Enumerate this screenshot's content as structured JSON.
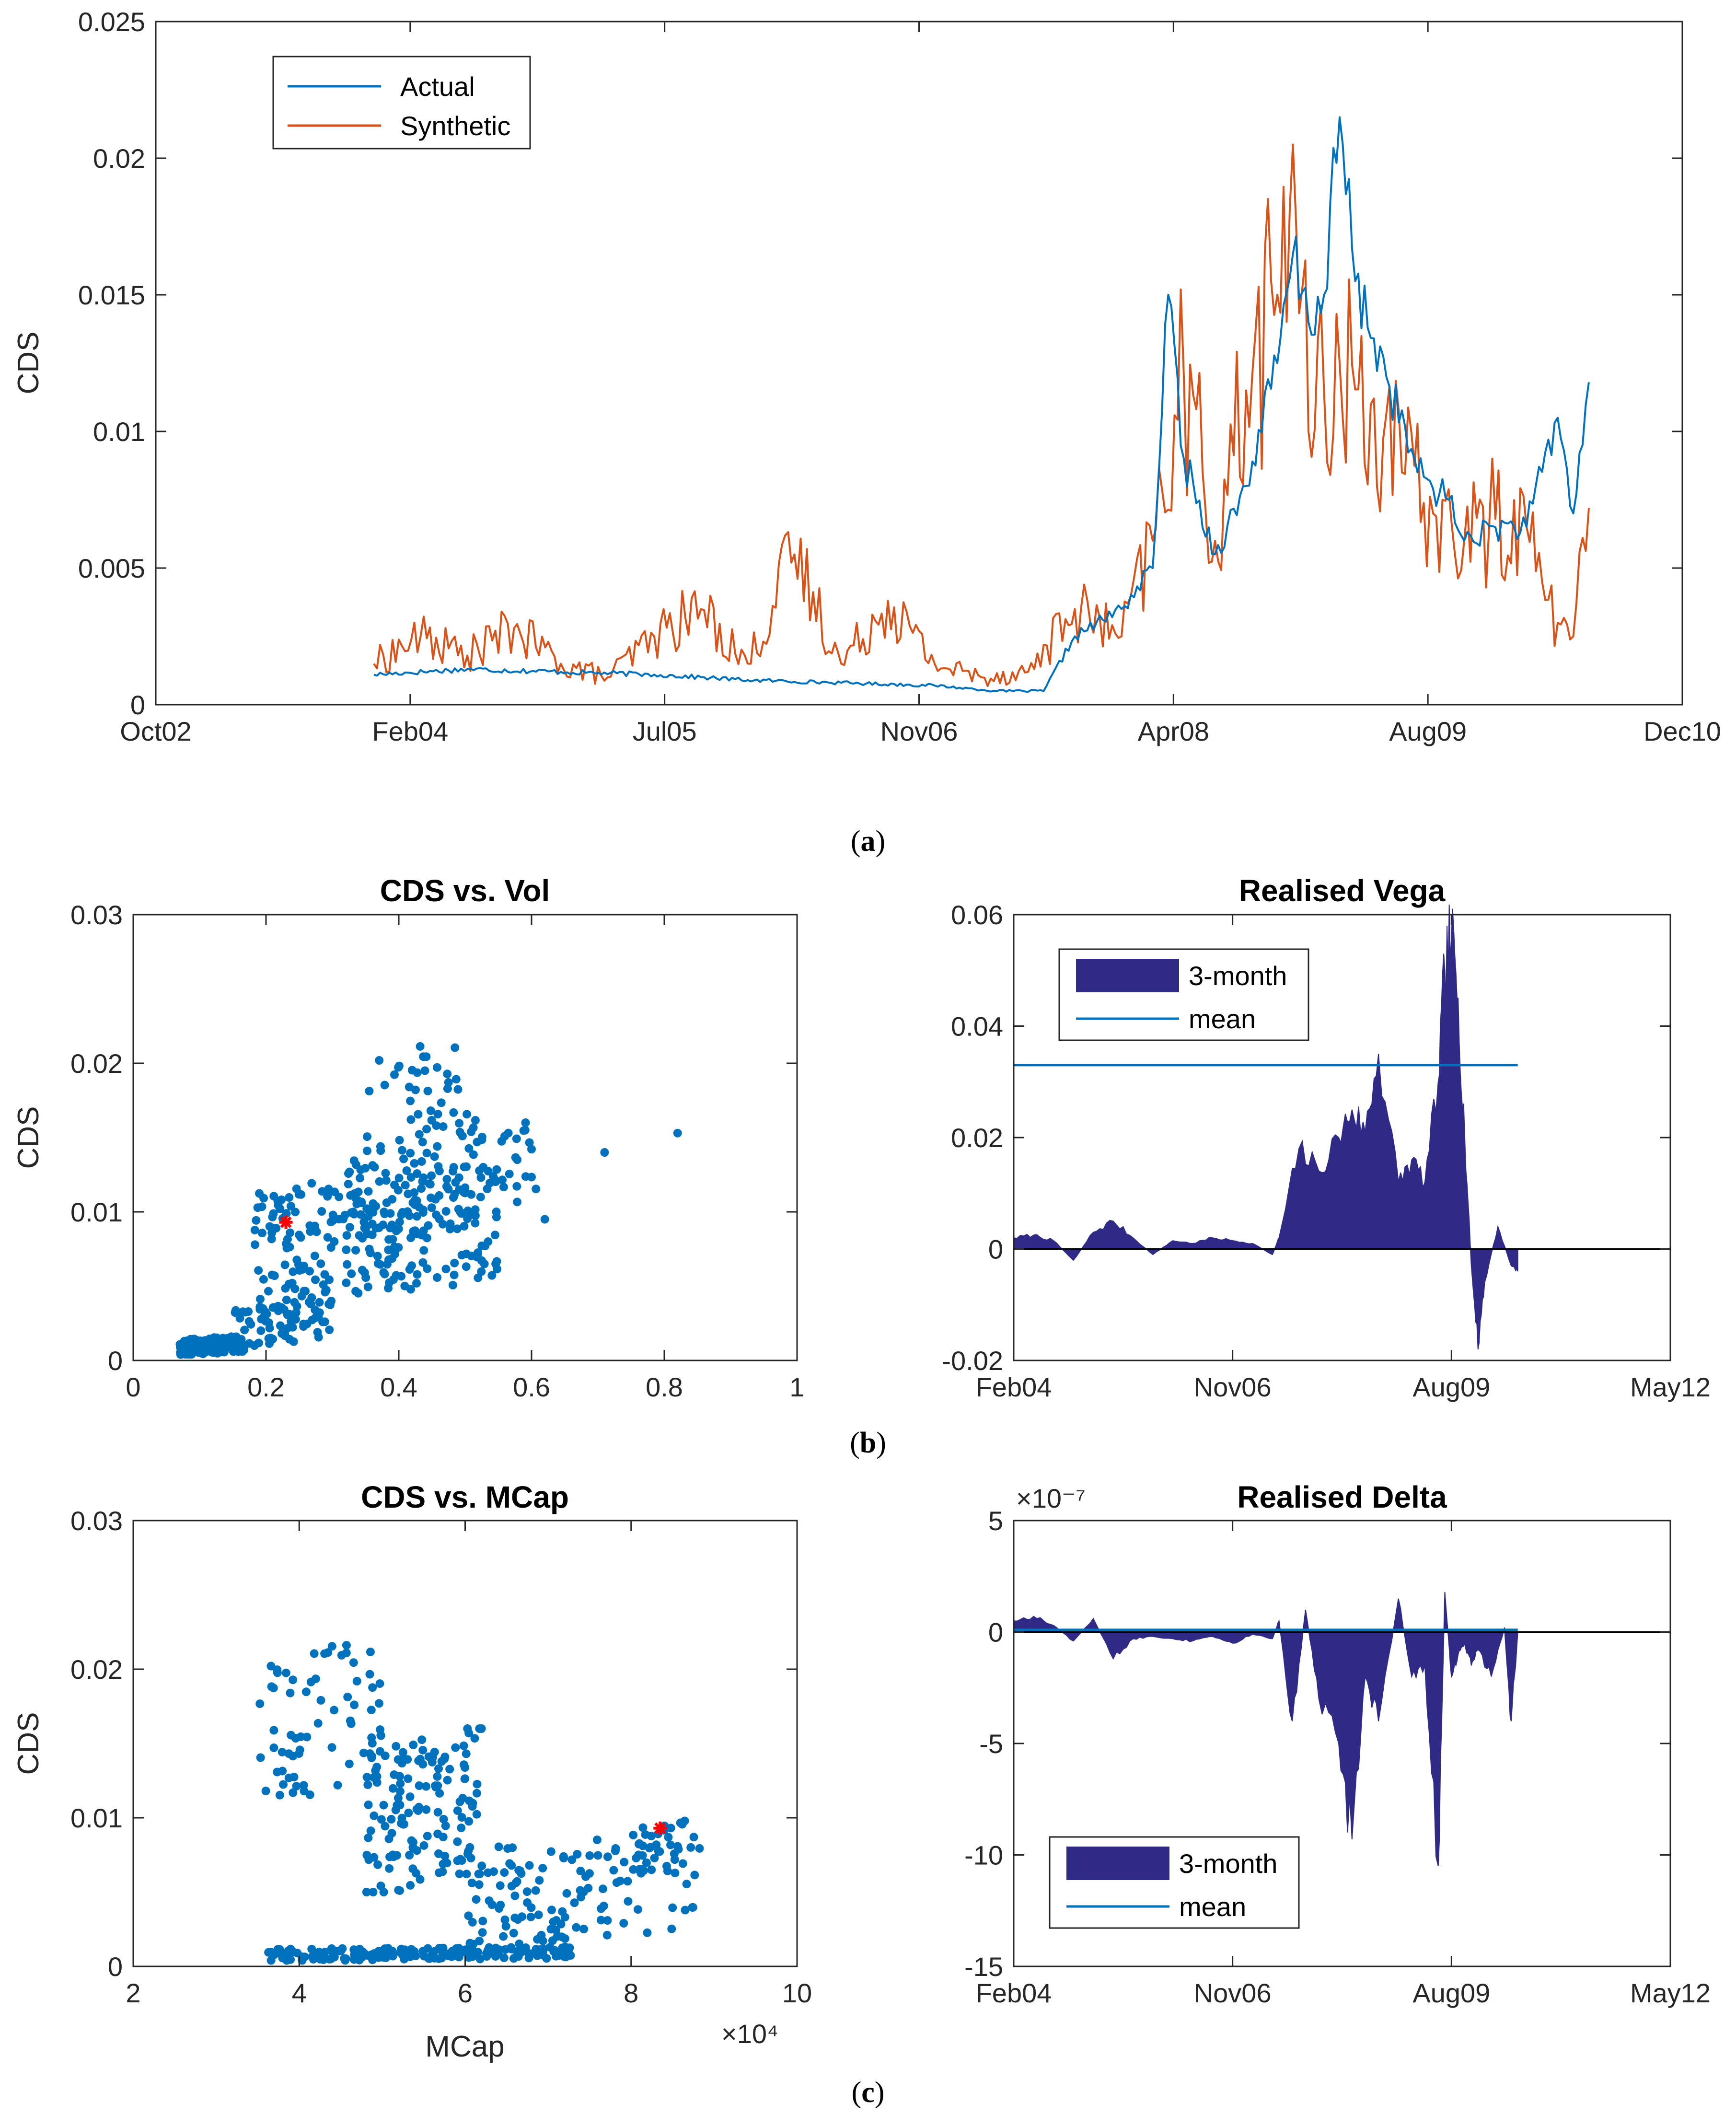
{
  "colors": {
    "actual": "#0072BD",
    "synthetic": "#D95319",
    "area": "#2E2A86",
    "mean": "#0072BD",
    "scatter": "#0072BD",
    "marker": "#FF0000",
    "axis": "#262626"
  },
  "captions": {
    "a": "a",
    "b": "b",
    "c": "c"
  },
  "chart_data": [
    {
      "id": "a",
      "type": "line",
      "ylabel": "CDS",
      "xtick_labels": [
        "Oct02",
        "Feb04",
        "Jul05",
        "Nov06",
        "Apr08",
        "Aug09",
        "Dec10"
      ],
      "xlim": [
        "2002-10",
        "2010-12"
      ],
      "ylim": [
        0,
        0.025
      ],
      "ytick_labels": [
        "0",
        "0.005",
        "0.01",
        "0.015",
        "0.02",
        "0.025"
      ],
      "legend": "top-left",
      "series": [
        {
          "name": "Actual",
          "x": [
            "2003-12",
            "2004-06",
            "2004-12",
            "2005-06",
            "2005-12",
            "2006-06",
            "2006-12",
            "2007-04",
            "2007-07",
            "2007-09",
            "2007-12",
            "2008-02",
            "2008-03",
            "2008-04",
            "2008-06",
            "2008-08",
            "2008-10",
            "2008-11",
            "2008-12",
            "2009-01",
            "2009-02",
            "2009-03",
            "2009-05",
            "2009-07",
            "2009-09",
            "2009-10",
            "2009-12",
            "2010-02",
            "2010-04",
            "2010-05",
            "2010-06"
          ],
          "y": [
            0.0011,
            0.0013,
            0.0012,
            0.0011,
            0.0009,
            0.0008,
            0.0007,
            0.0005,
            0.0005,
            0.0025,
            0.0035,
            0.005,
            0.015,
            0.009,
            0.0055,
            0.008,
            0.0125,
            0.0165,
            0.014,
            0.015,
            0.0215,
            0.0155,
            0.012,
            0.0085,
            0.0075,
            0.006,
            0.0065,
            0.0065,
            0.0105,
            0.007,
            0.0118
          ]
        },
        {
          "name": "Synthetic",
          "x": [
            "2003-12",
            "2004-03",
            "2004-06",
            "2004-09",
            "2004-12",
            "2005-03",
            "2005-06",
            "2005-09",
            "2005-12",
            "2006-03",
            "2006-06",
            "2006-09",
            "2006-12",
            "2007-03",
            "2007-06",
            "2007-09",
            "2007-12",
            "2008-02",
            "2008-04",
            "2008-06",
            "2008-08",
            "2008-10",
            "2008-11",
            "2008-12",
            "2009-02",
            "2009-04",
            "2009-06",
            "2009-08",
            "2009-10",
            "2009-12",
            "2010-02",
            "2010-03",
            "2010-04",
            "2010-05",
            "2010-06"
          ],
          "y": [
            0.0015,
            0.0025,
            0.0018,
            0.0028,
            0.0015,
            0.001,
            0.0025,
            0.0035,
            0.0015,
            0.0055,
            0.0015,
            0.0038,
            0.0015,
            0.001,
            0.0012,
            0.0035,
            0.0025,
            0.006,
            0.012,
            0.006,
            0.0115,
            0.015,
            0.0205,
            0.01,
            0.0125,
            0.011,
            0.0085,
            0.007,
            0.006,
            0.0068,
            0.0065,
            0.0045,
            0.003,
            0.0025,
            0.0072
          ]
        }
      ]
    },
    {
      "id": "b-left",
      "type": "scatter",
      "title": "CDS vs. Vol",
      "ylabel": "CDS",
      "xlim": [
        0,
        1
      ],
      "ylim": [
        0,
        0.03
      ],
      "xtick_labels": [
        "0",
        "0.2",
        "0.4",
        "0.6",
        "0.8",
        "1"
      ],
      "ytick_labels": [
        "0",
        "0.01",
        "0.02",
        "0.03"
      ],
      "clusters": [
        {
          "x": [
            0.07,
            0.17
          ],
          "y": [
            0.0004,
            0.0016
          ],
          "n": 150
        },
        {
          "x": [
            0.15,
            0.3
          ],
          "y": [
            0.001,
            0.004
          ],
          "n": 70
        },
        {
          "x": [
            0.18,
            0.55
          ],
          "y": [
            0.004,
            0.013
          ],
          "n": 230
        },
        {
          "x": [
            0.3,
            0.62
          ],
          "y": [
            0.008,
            0.016
          ],
          "n": 110
        },
        {
          "x": [
            0.35,
            0.52
          ],
          "y": [
            0.014,
            0.022
          ],
          "n": 40
        }
      ],
      "points": [
        {
          "x": 0.71,
          "y": 0.014
        },
        {
          "x": 0.82,
          "y": 0.0153
        },
        {
          "x": 0.62,
          "y": 0.0095
        }
      ],
      "highlight": {
        "x": 0.23,
        "y": 0.0093
      }
    },
    {
      "id": "b-right",
      "type": "area",
      "title": "Realised Vega",
      "xtick_labels": [
        "Feb04",
        "Nov06",
        "Aug09",
        "May12"
      ],
      "xlim": [
        "2004-02",
        "2012-05"
      ],
      "ylim": [
        -0.02,
        0.06
      ],
      "ytick_labels": [
        "-0.02",
        "0",
        "0.02",
        "0.04",
        "0.06"
      ],
      "legend": "top-left",
      "series": [
        {
          "name": "3-month",
          "x": [
            "2004-02",
            "2004-05",
            "2004-08",
            "2004-11",
            "2005-02",
            "2005-05",
            "2005-08",
            "2005-11",
            "2006-02",
            "2006-05",
            "2006-08",
            "2006-11",
            "2007-02",
            "2007-05",
            "2007-06",
            "2007-09",
            "2007-12",
            "2008-03",
            "2008-05",
            "2008-07",
            "2008-09",
            "2008-12",
            "2009-02",
            "2009-04",
            "2009-06",
            "2009-07",
            "2009-08",
            "2009-09",
            "2009-10",
            "2009-11",
            "2009-12",
            "2010-01",
            "2010-03",
            "2010-05",
            "2010-06"
          ],
          "y": [
            0.002,
            0.0025,
            0.0015,
            -0.002,
            0.003,
            0.005,
            0.002,
            -0.001,
            0.0015,
            0.001,
            0.002,
            0.0015,
            0.001,
            -0.001,
            0.002,
            0.018,
            0.014,
            0.02,
            0.025,
            0.021,
            0.035,
            0.012,
            0.016,
            0.012,
            0.03,
            0.05,
            0.056,
            0.045,
            0.02,
            -0.003,
            -0.018,
            -0.006,
            0.004,
            -0.003,
            -0.004
          ]
        },
        {
          "name": "mean",
          "y": 0.033
        }
      ]
    },
    {
      "id": "c-left",
      "type": "scatter",
      "title": "CDS vs. MCap",
      "ylabel": "CDS",
      "xlabel": "MCap",
      "xlim": [
        2,
        10
      ],
      "ylim": [
        0,
        0.03
      ],
      "x_multiplier": "×10⁴",
      "xtick_labels": [
        "2",
        "4",
        "6",
        "8",
        "10"
      ],
      "ytick_labels": [
        "0",
        "0.01",
        "0.02",
        "0.03"
      ],
      "clusters": [
        {
          "x": [
            3.6,
            7.3
          ],
          "y": [
            0.0004,
            0.0013
          ],
          "n": 200
        },
        {
          "x": [
            3.5,
            5.0
          ],
          "y": [
            0.011,
            0.022
          ],
          "n": 70
        },
        {
          "x": [
            4.8,
            6.2
          ],
          "y": [
            0.005,
            0.016
          ],
          "n": 140
        },
        {
          "x": [
            6.0,
            8.9
          ],
          "y": [
            0.0015,
            0.009
          ],
          "n": 130
        },
        {
          "x": [
            8.0,
            8.7
          ],
          "y": [
            0.006,
            0.0105
          ],
          "n": 25
        }
      ],
      "points": [],
      "highlight": {
        "x": 8.35,
        "y": 0.0093
      }
    },
    {
      "id": "c-right",
      "type": "area",
      "title": "Realised Delta",
      "xtick_labels": [
        "Feb04",
        "Nov06",
        "Aug09",
        "May12"
      ],
      "xlim": [
        "2004-02",
        "2012-05"
      ],
      "ylim": [
        -15,
        5
      ],
      "y_multiplier": "×10⁻⁷",
      "ytick_labels": [
        "-15",
        "-10",
        "-5",
        "0",
        "5"
      ],
      "legend": "bottom-left",
      "series": [
        {
          "name": "3-month",
          "x": [
            "2004-02",
            "2004-05",
            "2004-08",
            "2004-11",
            "2005-02",
            "2005-05",
            "2005-08",
            "2005-11",
            "2006-02",
            "2006-05",
            "2006-08",
            "2006-11",
            "2007-02",
            "2007-05",
            "2007-06",
            "2007-08",
            "2007-10",
            "2007-12",
            "2008-03",
            "2008-05",
            "2008-07",
            "2008-09",
            "2008-12",
            "2009-02",
            "2009-04",
            "2009-06",
            "2009-07",
            "2009-08",
            "2009-09",
            "2009-10",
            "2009-11",
            "2009-12",
            "2010-02",
            "2010-04",
            "2010-05",
            "2010-06"
          ],
          "y": [
            0.5,
            0.7,
            0.3,
            -0.4,
            0.6,
            -1.2,
            -0.3,
            -0.2,
            -0.3,
            -0.4,
            -0.2,
            -0.5,
            -0.1,
            -0.3,
            0.5,
            -4,
            1,
            -3,
            -5,
            -9.3,
            -2,
            -4,
            1.5,
            -2,
            -1.5,
            -10.5,
            1.8,
            -2,
            -1,
            -0.5,
            -1.5,
            -0.8,
            -2,
            0.2,
            -4,
            0
          ]
        },
        {
          "name": "mean",
          "y": 0.1
        }
      ]
    }
  ]
}
